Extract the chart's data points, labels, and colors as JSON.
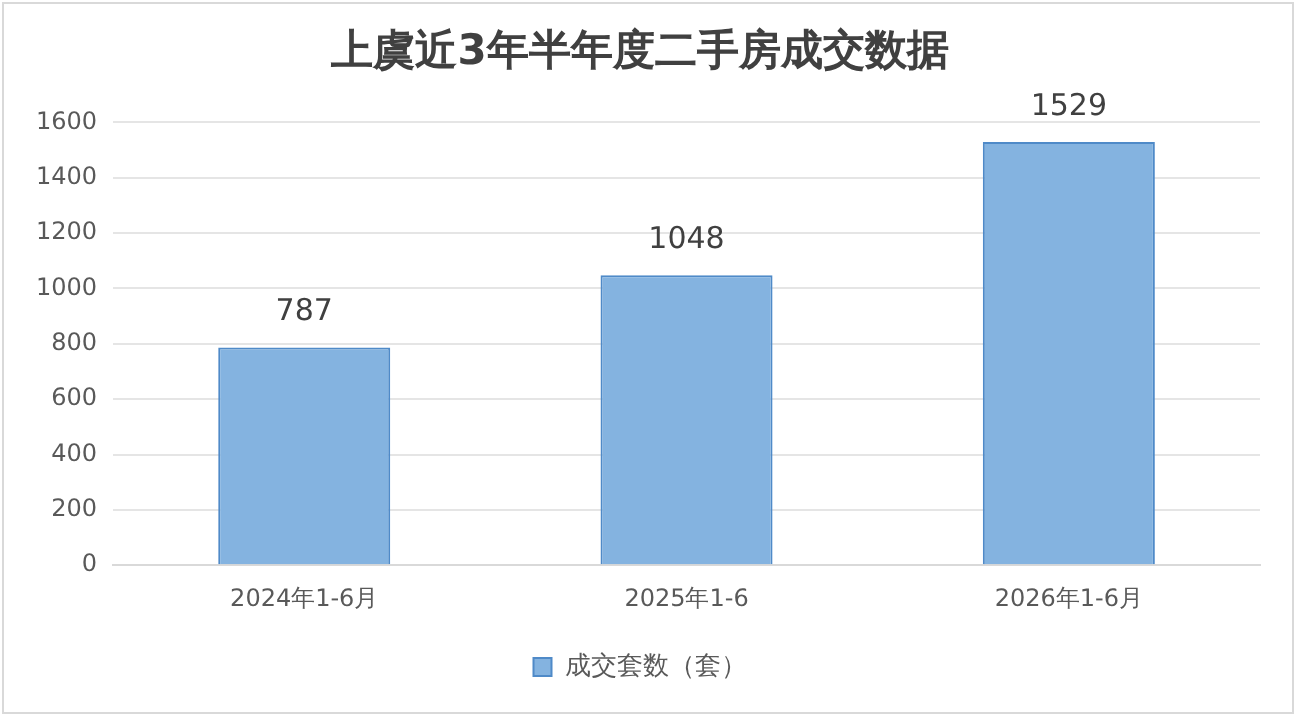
{
  "chart_data": {
    "type": "bar",
    "title": "上虞近3年半年度二手房成交数据",
    "categories": [
      "2024年1-6月",
      "2025年1-6",
      "2026年1-6月"
    ],
    "series": [
      {
        "name": "成交套数（套）",
        "color": "#84b3e0",
        "values": [
          787,
          1048,
          1529
        ]
      }
    ],
    "ylim": [
      0,
      1600
    ],
    "yticks": [
      0,
      200,
      400,
      600,
      800,
      1000,
      1200,
      1400,
      1600
    ],
    "grid": "y",
    "legend": "bottom",
    "data_labels": true
  }
}
